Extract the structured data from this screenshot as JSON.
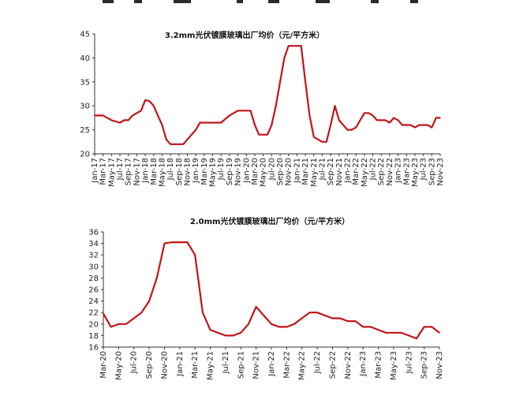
{
  "colors": {
    "series": "#c0141a",
    "axis": "#333333",
    "text": "#222222"
  },
  "chart_data": [
    {
      "type": "line",
      "title": "3.2mm光伏镀膜玻璃出厂均价（元/平方米）",
      "xlabel": "",
      "ylabel": "",
      "ylim": [
        20,
        45
      ],
      "yticks": [
        20,
        25,
        30,
        35,
        40,
        45
      ],
      "x_tick_labels": [
        "Jan-17",
        "Mar-17",
        "May-17",
        "Jul-17",
        "Sep-17",
        "Nov-17",
        "Jan-18",
        "Mar-18",
        "May-18",
        "Jul-18",
        "Sep-18",
        "Nov-18",
        "Jan-19",
        "Mar-19",
        "May-19",
        "Jul-19",
        "Sep-19",
        "Nov-19",
        "Jan-20",
        "Mar-20",
        "May-20",
        "Jul-20",
        "Sep-20",
        "Nov-20",
        "Jan-21",
        "Mar-21",
        "May-21",
        "Jul-21",
        "Sep-21",
        "Nov-21",
        "Jan-22",
        "Mar-22",
        "May-22",
        "Jul-22",
        "Sep-22",
        "Nov-22",
        "Jan-23",
        "Mar-23",
        "May-23",
        "Jul-23",
        "Sep-23",
        "Nov-23"
      ],
      "grid": false,
      "series": [
        {
          "x": [
            "2017-01",
            "2017-03",
            "2017-04",
            "2017-05",
            "2017-07",
            "2017-08",
            "2017-09",
            "2017-10",
            "2017-11",
            "2017-12",
            "2018-01",
            "2018-02",
            "2018-03",
            "2018-04",
            "2018-05",
            "2018-06",
            "2018-07",
            "2018-08",
            "2018-09",
            "2018-10",
            "2018-11",
            "2018-12",
            "2019-01",
            "2019-02",
            "2019-03",
            "2019-05",
            "2019-06",
            "2019-07",
            "2019-09",
            "2019-10",
            "2019-11",
            "2020-01",
            "2020-02",
            "2020-03",
            "2020-04",
            "2020-05",
            "2020-06",
            "2020-07",
            "2020-08",
            "2020-09",
            "2020-10",
            "2020-11",
            "2020-12",
            "2021-01",
            "2021-02",
            "2021-03",
            "2021-04",
            "2021-05",
            "2021-06",
            "2021-07",
            "2021-08",
            "2021-09",
            "2021-10",
            "2021-11",
            "2021-12",
            "2022-01",
            "2022-02",
            "2022-03",
            "2022-04",
            "2022-05",
            "2022-06",
            "2022-07",
            "2022-08",
            "2022-09",
            "2022-10",
            "2022-11",
            "2022-12",
            "2023-01",
            "2023-02",
            "2023-03",
            "2023-04",
            "2023-05",
            "2023-06",
            "2023-07",
            "2023-08",
            "2023-09",
            "2023-10",
            "2023-11"
          ],
          "values": [
            28,
            28,
            27.5,
            27,
            26.5,
            27,
            27,
            28,
            28.5,
            29,
            31.2,
            31,
            30,
            28,
            26,
            23,
            22,
            22,
            22,
            22,
            23,
            24,
            25,
            26.5,
            26.5,
            26.5,
            26.5,
            26.5,
            28,
            28.5,
            29,
            29,
            29,
            26,
            24,
            24,
            24,
            26,
            30,
            35,
            40,
            42.5,
            42.5,
            42.5,
            42.5,
            35,
            28,
            23.5,
            23,
            22.5,
            22.5,
            26,
            30,
            27,
            26,
            25,
            25,
            25.5,
            27,
            28.5,
            28.5,
            28,
            27,
            27,
            27,
            26.5,
            27.5,
            27,
            26,
            26,
            26,
            25.5,
            26,
            26,
            26,
            25.5,
            27.5,
            27.5
          ]
        }
      ]
    },
    {
      "type": "line",
      "title": "2.0mm光伏镀膜玻璃出厂均价（元/平方米）",
      "xlabel": "",
      "ylabel": "",
      "ylim": [
        16,
        36
      ],
      "yticks": [
        16,
        18,
        20,
        22,
        24,
        26,
        28,
        30,
        32,
        34,
        36
      ],
      "x_tick_labels": [
        "Mar-20",
        "May-20",
        "Jul-20",
        "Sep-20",
        "Nov-20",
        "Jan-21",
        "Mar-21",
        "May-21",
        "Jul-21",
        "Sep-21",
        "Nov-21",
        "Jan-22",
        "Mar-22",
        "May-22",
        "Jul-22",
        "Sep-22",
        "Nov-22",
        "Jan-23",
        "Mar-23",
        "May-23",
        "Jul-23",
        "Sep-23",
        "Nov-23"
      ],
      "grid": false,
      "series": [
        {
          "x": [
            "2020-03",
            "2020-04",
            "2020-05",
            "2020-06",
            "2020-07",
            "2020-08",
            "2020-09",
            "2020-10",
            "2020-11",
            "2020-12",
            "2021-01",
            "2021-02",
            "2021-03",
            "2021-04",
            "2021-05",
            "2021-06",
            "2021-07",
            "2021-08",
            "2021-09",
            "2021-10",
            "2021-11",
            "2021-12",
            "2022-01",
            "2022-02",
            "2022-03",
            "2022-04",
            "2022-05",
            "2022-06",
            "2022-07",
            "2022-08",
            "2022-09",
            "2022-10",
            "2022-11",
            "2022-12",
            "2023-01",
            "2023-02",
            "2023-03",
            "2023-04",
            "2023-05",
            "2023-06",
            "2023-07",
            "2023-08",
            "2023-09",
            "2023-10",
            "2023-11"
          ],
          "values": [
            21.8,
            19.5,
            20,
            20,
            21,
            22,
            24,
            28,
            34,
            34.2,
            34.2,
            34.2,
            32,
            22,
            19,
            18.5,
            18,
            18,
            18.5,
            20,
            23,
            21.5,
            20,
            19.5,
            19.5,
            20,
            21,
            22,
            22,
            21.5,
            21,
            21,
            20.5,
            20.5,
            19.5,
            19.5,
            19,
            18.5,
            18.5,
            18.5,
            18,
            17.5,
            19.5,
            19.5,
            18.5
          ]
        }
      ]
    }
  ]
}
